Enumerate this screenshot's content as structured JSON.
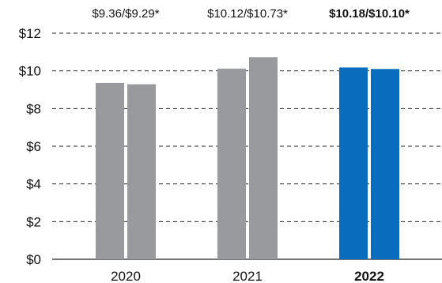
{
  "chart_data": {
    "type": "bar",
    "categories": [
      "2020",
      "2021",
      "2022"
    ],
    "series": [
      {
        "values": [
          9.36,
          10.12,
          10.18
        ]
      },
      {
        "values": [
          9.29,
          10.73,
          10.1
        ]
      }
    ],
    "annotations": [
      "$9.36/$9.29*",
      "$10.12/$10.73*",
      "$10.18/$10.10*"
    ],
    "highlight_category": "2022",
    "ylim": [
      0,
      12
    ],
    "yticks": [
      0,
      2,
      4,
      6,
      8,
      10,
      12
    ],
    "ytick_labels": [
      "$0",
      "$2",
      "$4",
      "$6",
      "$8",
      "$10",
      "$12"
    ],
    "grid": "dashed horizontal",
    "colors": {
      "default_bar": "#999a9d",
      "highlight_bar": "#0a6cbc",
      "grid": "#222222",
      "text": "#111111"
    }
  }
}
